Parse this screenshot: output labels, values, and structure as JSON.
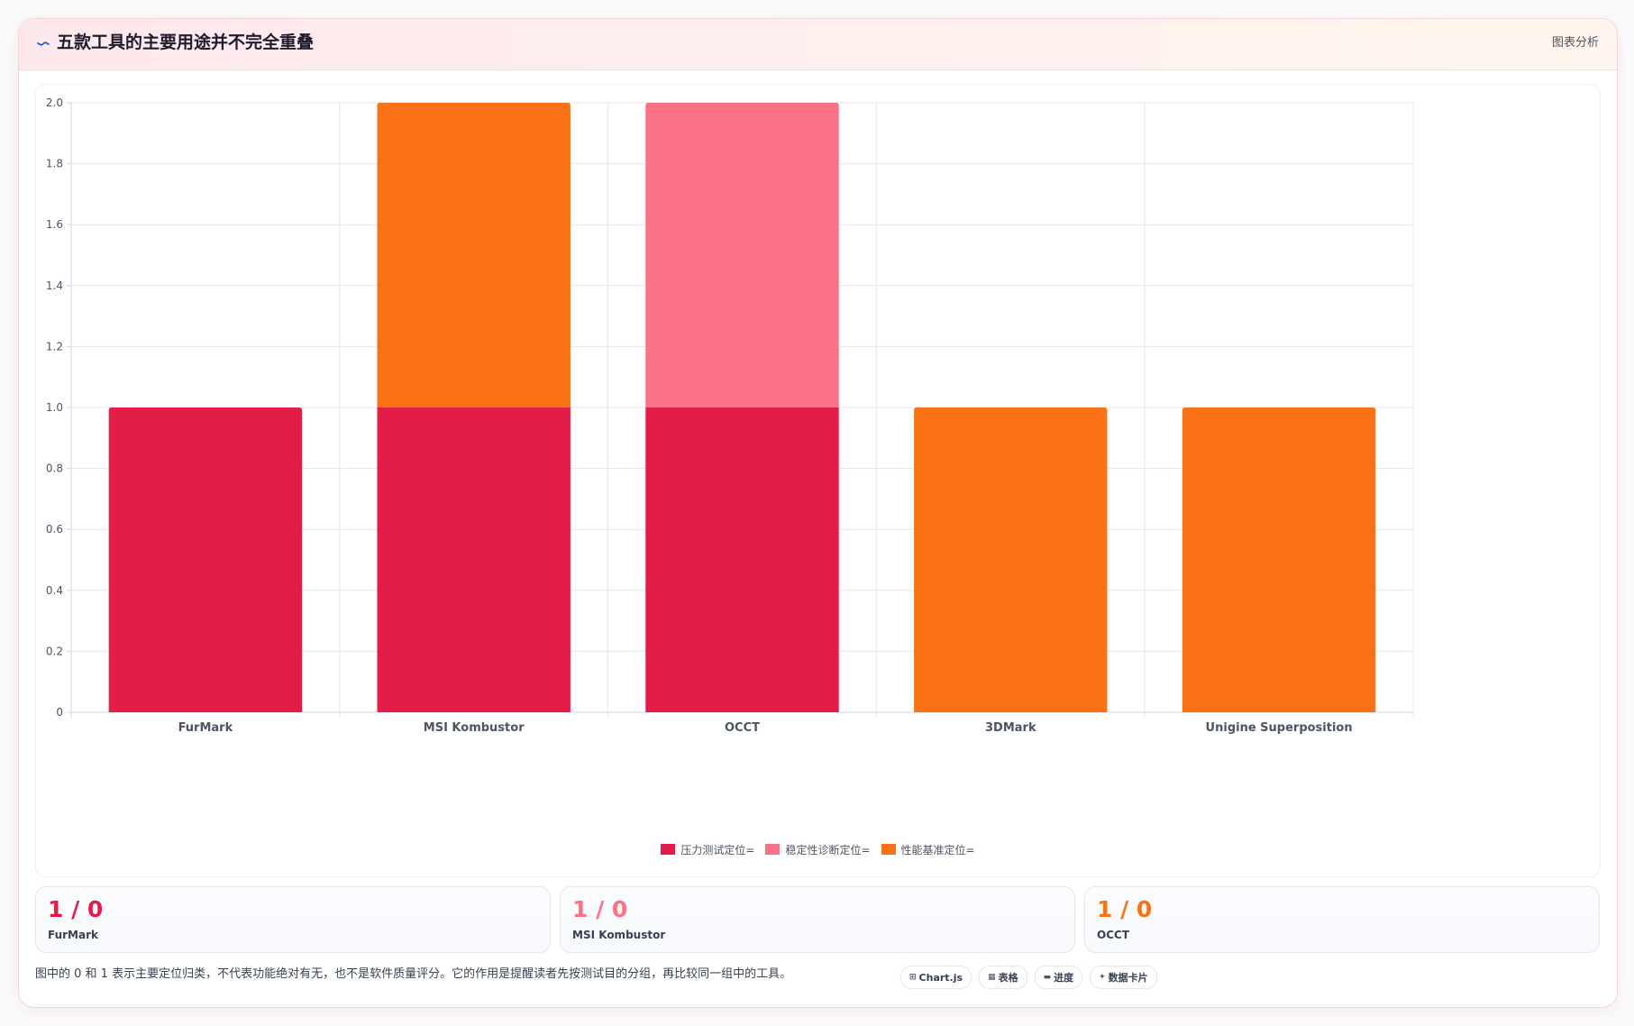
{
  "header": {
    "title": "五款工具的主要用途并不完全重叠",
    "right_label": "图表分析",
    "icon": "trend-line-icon"
  },
  "colors": {
    "stress": "#e11d48",
    "stability": "#fb7185",
    "benchmark": "#f97316"
  },
  "chart_data": {
    "type": "bar",
    "stacked": true,
    "categories": [
      "FurMark",
      "MSI Kombustor",
      "OCCT",
      "3DMark",
      "Unigine Superposition"
    ],
    "series": [
      {
        "name": "压力测试定位=",
        "values": [
          1,
          1,
          1,
          0,
          0
        ],
        "color": "#e11d48"
      },
      {
        "name": "稳定性诊断定位=",
        "values": [
          0,
          0,
          1,
          0,
          0
        ],
        "color": "#fb7185"
      },
      {
        "name": "性能基准定位=",
        "values": [
          0,
          1,
          0,
          1,
          1
        ],
        "color": "#f97316"
      }
    ],
    "ylim": [
      0,
      2
    ],
    "yticks": [
      0,
      0.2,
      0.4,
      0.6,
      0.8,
      1.0,
      1.2,
      1.4,
      1.6,
      1.8,
      2.0
    ],
    "ytick_labels": [
      "0",
      "0.2",
      "0.4",
      "0.6",
      "0.8",
      "1.0",
      "1.2",
      "1.4",
      "1.6",
      "1.8",
      "2.0"
    ],
    "grid": true,
    "legend_position": "bottom"
  },
  "stats": [
    {
      "value": "1 / 0",
      "label": "FurMark",
      "color": "#e11d48"
    },
    {
      "value": "1 / 0",
      "label": "MSI Kombustor",
      "color": "#fb7185"
    },
    {
      "value": "1 / 0",
      "label": "OCCT",
      "color": "#f97316"
    }
  ],
  "footnote": "图中的 0 和 1 表示主要定位归类，不代表功能绝对有无，也不是软件质量评分。它的作用是提醒读者先按测试目的分组，再比较同一组中的工具。",
  "chips": [
    {
      "icon": "⊞",
      "icon_name": "chart-icon",
      "label": "Chart.js"
    },
    {
      "icon": "▦",
      "icon_name": "table-icon",
      "label": "表格"
    },
    {
      "icon": "▬",
      "icon_name": "progress-icon",
      "label": "进度"
    },
    {
      "icon": "✦",
      "icon_name": "sparkle-icon",
      "label": "数据卡片"
    }
  ]
}
